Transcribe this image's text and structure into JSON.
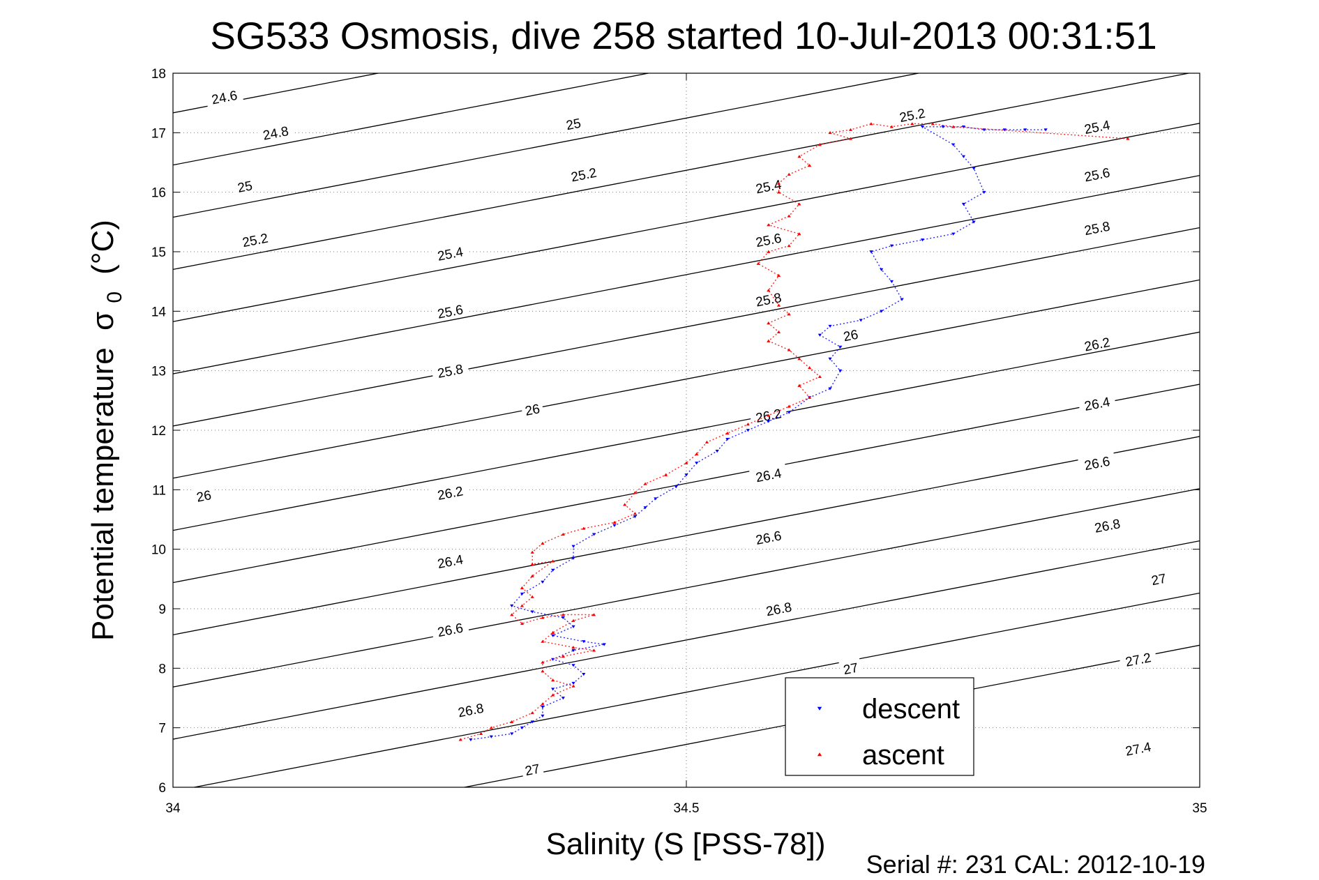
{
  "chart_data": {
    "type": "scatter",
    "title": "SG533 Osmosis, dive 258 started 10-Jul-2013 00:31:51",
    "xlabel": "Salinity (S [PSS-78])",
    "ylabel": "Potential temperature",
    "ylabel_symbol": "σ",
    "ylabel_sub": "0",
    "ylabel_unit": "(°C)",
    "xlim": [
      34,
      35
    ],
    "ylim": [
      6,
      18
    ],
    "xticks": [
      "34",
      "34.5",
      "35"
    ],
    "xtick_values": [
      34,
      34.5,
      35
    ],
    "yticks": [
      "6",
      "7",
      "8",
      "9",
      "10",
      "11",
      "12",
      "13",
      "14",
      "15",
      "16",
      "17",
      "18"
    ],
    "ytick_values": [
      6,
      7,
      8,
      9,
      10,
      11,
      12,
      13,
      14,
      15,
      16,
      17,
      18
    ],
    "grid": true,
    "legend_position": "bottom-right",
    "footer": "Serial #: 231  CAL: 2012-10-19",
    "density_contours": [
      24.6,
      24.8,
      25,
      25.2,
      25.4,
      25.6,
      25.8,
      26,
      26.2,
      26.4,
      26.6,
      26.8,
      27,
      27.2,
      27.4
    ],
    "contour_labels": [
      {
        "text": "24.6",
        "s": 34.05,
        "t": 17.6
      },
      {
        "text": "24.8",
        "s": 34.1,
        "t": 17.0
      },
      {
        "text": "25",
        "s": 34.07,
        "t": 16.1
      },
      {
        "text": "25.2",
        "s": 34.08,
        "t": 15.2
      },
      {
        "text": "26",
        "s": 34.03,
        "t": 10.9
      },
      {
        "text": "25",
        "s": 34.39,
        "t": 17.15
      },
      {
        "text": "25.2",
        "s": 34.4,
        "t": 16.3
      },
      {
        "text": "25.4",
        "s": 34.27,
        "t": 14.97
      },
      {
        "text": "25.6",
        "s": 34.27,
        "t": 14.0
      },
      {
        "text": "25.8",
        "s": 34.27,
        "t": 13.0
      },
      {
        "text": "26",
        "s": 34.35,
        "t": 12.35
      },
      {
        "text": "26.2",
        "s": 34.27,
        "t": 10.95
      },
      {
        "text": "26.4",
        "s": 34.27,
        "t": 9.8
      },
      {
        "text": "26.6",
        "s": 34.27,
        "t": 8.65
      },
      {
        "text": "26.8",
        "s": 34.29,
        "t": 7.3
      },
      {
        "text": "27",
        "s": 34.35,
        "t": 6.3
      },
      {
        "text": "25.2",
        "s": 34.72,
        "t": 17.3
      },
      {
        "text": "25.4",
        "s": 34.58,
        "t": 16.1
      },
      {
        "text": "25.6",
        "s": 34.58,
        "t": 15.2
      },
      {
        "text": "25.8",
        "s": 34.58,
        "t": 14.2
      },
      {
        "text": "26",
        "s": 34.66,
        "t": 13.6
      },
      {
        "text": "26.2",
        "s": 34.58,
        "t": 12.25
      },
      {
        "text": "26.4",
        "s": 34.58,
        "t": 11.25
      },
      {
        "text": "26.6",
        "s": 34.58,
        "t": 10.2
      },
      {
        "text": "26.8",
        "s": 34.59,
        "t": 9.0
      },
      {
        "text": "27",
        "s": 34.66,
        "t": 8.0
      },
      {
        "text": "25.4",
        "s": 34.9,
        "t": 17.1
      },
      {
        "text": "25.6",
        "s": 34.9,
        "t": 16.3
      },
      {
        "text": "25.8",
        "s": 34.9,
        "t": 15.4
      },
      {
        "text": "26.2",
        "s": 34.9,
        "t": 13.45
      },
      {
        "text": "26.4",
        "s": 34.9,
        "t": 12.45
      },
      {
        "text": "26.6",
        "s": 34.9,
        "t": 11.45
      },
      {
        "text": "26.8",
        "s": 34.91,
        "t": 10.4
      },
      {
        "text": "27",
        "s": 34.96,
        "t": 9.5
      },
      {
        "text": "27.2",
        "s": 34.94,
        "t": 8.15
      },
      {
        "text": "27.4",
        "s": 34.94,
        "t": 6.65
      }
    ],
    "series": [
      {
        "name": "descent",
        "color": "#0000ff",
        "marker": "triangle-down",
        "points": [
          [
            34.85,
            17.05
          ],
          [
            34.83,
            17.05
          ],
          [
            34.81,
            17.05
          ],
          [
            34.79,
            17.05
          ],
          [
            34.77,
            17.1
          ],
          [
            34.75,
            17.1
          ],
          [
            34.73,
            17.1
          ],
          [
            34.76,
            16.8
          ],
          [
            34.77,
            16.6
          ],
          [
            34.78,
            16.4
          ],
          [
            34.79,
            16.0
          ],
          [
            34.77,
            15.8
          ],
          [
            34.78,
            15.5
          ],
          [
            34.76,
            15.3
          ],
          [
            34.73,
            15.2
          ],
          [
            34.7,
            15.1
          ],
          [
            34.68,
            15.0
          ],
          [
            34.69,
            14.7
          ],
          [
            34.7,
            14.5
          ],
          [
            34.71,
            14.2
          ],
          [
            34.69,
            14.0
          ],
          [
            34.67,
            13.85
          ],
          [
            34.64,
            13.75
          ],
          [
            34.63,
            13.6
          ],
          [
            34.65,
            13.4
          ],
          [
            34.64,
            13.2
          ],
          [
            34.65,
            13.0
          ],
          [
            34.64,
            12.7
          ],
          [
            34.62,
            12.55
          ],
          [
            34.6,
            12.3
          ],
          [
            34.58,
            12.15
          ],
          [
            34.56,
            12.0
          ],
          [
            34.54,
            11.85
          ],
          [
            34.53,
            11.65
          ],
          [
            34.51,
            11.45
          ],
          [
            34.5,
            11.25
          ],
          [
            34.49,
            11.05
          ],
          [
            34.47,
            10.85
          ],
          [
            34.46,
            10.7
          ],
          [
            34.45,
            10.55
          ],
          [
            34.43,
            10.4
          ],
          [
            34.41,
            10.25
          ],
          [
            34.39,
            10.05
          ],
          [
            34.39,
            9.85
          ],
          [
            34.37,
            9.65
          ],
          [
            34.36,
            9.45
          ],
          [
            34.34,
            9.25
          ],
          [
            34.33,
            9.05
          ],
          [
            34.35,
            8.95
          ],
          [
            34.38,
            8.85
          ],
          [
            34.39,
            8.7
          ],
          [
            34.37,
            8.55
          ],
          [
            34.4,
            8.45
          ],
          [
            34.42,
            8.4
          ],
          [
            34.39,
            8.3
          ],
          [
            34.37,
            8.15
          ],
          [
            34.39,
            8.05
          ],
          [
            34.4,
            7.9
          ],
          [
            34.39,
            7.75
          ],
          [
            34.37,
            7.65
          ],
          [
            34.38,
            7.5
          ],
          [
            34.36,
            7.35
          ],
          [
            34.36,
            7.2
          ],
          [
            34.35,
            7.1
          ],
          [
            34.34,
            7.0
          ],
          [
            34.33,
            6.9
          ],
          [
            34.31,
            6.85
          ],
          [
            34.29,
            6.8
          ]
        ]
      },
      {
        "name": "ascent",
        "color": "#ff0000",
        "marker": "triangle-up",
        "points": [
          [
            34.93,
            16.9
          ],
          [
            34.76,
            17.1
          ],
          [
            34.74,
            17.15
          ],
          [
            34.72,
            17.15
          ],
          [
            34.7,
            17.1
          ],
          [
            34.68,
            17.15
          ],
          [
            34.66,
            17.05
          ],
          [
            34.64,
            17.0
          ],
          [
            34.66,
            16.9
          ],
          [
            34.63,
            16.8
          ],
          [
            34.61,
            16.6
          ],
          [
            34.62,
            16.45
          ],
          [
            34.6,
            16.3
          ],
          [
            34.59,
            16.15
          ],
          [
            34.59,
            16.0
          ],
          [
            34.61,
            15.8
          ],
          [
            34.6,
            15.6
          ],
          [
            34.58,
            15.45
          ],
          [
            34.61,
            15.3
          ],
          [
            34.6,
            15.1
          ],
          [
            34.58,
            15.0
          ],
          [
            34.57,
            14.8
          ],
          [
            34.59,
            14.6
          ],
          [
            34.58,
            14.35
          ],
          [
            34.59,
            14.1
          ],
          [
            34.6,
            13.95
          ],
          [
            34.58,
            13.8
          ],
          [
            34.59,
            13.65
          ],
          [
            34.58,
            13.5
          ],
          [
            34.6,
            13.35
          ],
          [
            34.61,
            13.2
          ],
          [
            34.62,
            13.05
          ],
          [
            34.63,
            12.9
          ],
          [
            34.61,
            12.75
          ],
          [
            34.62,
            12.55
          ],
          [
            34.6,
            12.4
          ],
          [
            34.58,
            12.25
          ],
          [
            34.56,
            12.1
          ],
          [
            34.54,
            11.95
          ],
          [
            34.52,
            11.8
          ],
          [
            34.51,
            11.6
          ],
          [
            34.5,
            11.45
          ],
          [
            34.48,
            11.25
          ],
          [
            34.46,
            11.1
          ],
          [
            34.45,
            10.95
          ],
          [
            34.44,
            10.75
          ],
          [
            34.45,
            10.6
          ],
          [
            34.43,
            10.45
          ],
          [
            34.4,
            10.35
          ],
          [
            34.38,
            10.25
          ],
          [
            34.36,
            10.1
          ],
          [
            34.35,
            9.95
          ],
          [
            34.35,
            9.75
          ],
          [
            34.37,
            9.8
          ],
          [
            34.35,
            9.55
          ],
          [
            34.34,
            9.35
          ],
          [
            34.35,
            9.2
          ],
          [
            34.34,
            9.05
          ],
          [
            34.33,
            8.9
          ],
          [
            34.34,
            8.75
          ],
          [
            34.36,
            8.85
          ],
          [
            34.38,
            8.9
          ],
          [
            34.41,
            8.9
          ],
          [
            34.39,
            8.8
          ],
          [
            34.37,
            8.6
          ],
          [
            34.36,
            8.45
          ],
          [
            34.39,
            8.35
          ],
          [
            34.41,
            8.3
          ],
          [
            34.38,
            8.2
          ],
          [
            34.36,
            8.1
          ],
          [
            34.36,
            7.95
          ],
          [
            34.37,
            7.8
          ],
          [
            34.39,
            7.7
          ],
          [
            34.37,
            7.55
          ],
          [
            34.36,
            7.4
          ],
          [
            34.35,
            7.25
          ],
          [
            34.33,
            7.1
          ],
          [
            34.31,
            7.0
          ],
          [
            34.3,
            6.9
          ],
          [
            34.28,
            6.8
          ]
        ]
      }
    ]
  }
}
